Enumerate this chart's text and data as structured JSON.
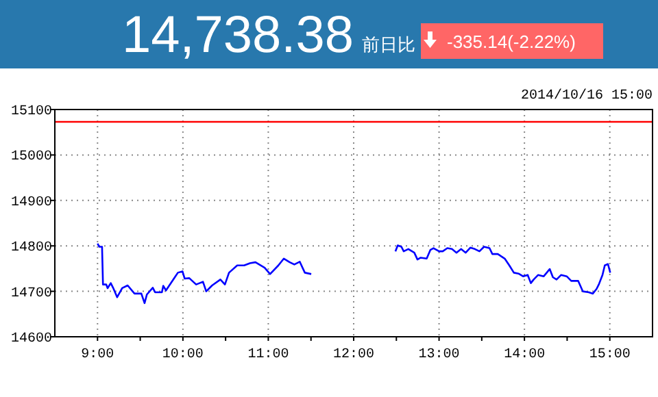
{
  "chart_data": {
    "type": "line",
    "title": "14,738.38",
    "annotations": [
      "前日比",
      "-335.14(-2.22%)",
      "2014/10/16 15:00"
    ],
    "xlim": [
      8.5,
      15.5
    ],
    "xticks": [
      {
        "value": 9,
        "label": "9:00"
      },
      {
        "value": 9.5,
        "label": null
      },
      {
        "value": 10,
        "label": "10:00"
      },
      {
        "value": 10.5,
        "label": null
      },
      {
        "value": 11,
        "label": "11:00"
      },
      {
        "value": 11.5,
        "label": null
      },
      {
        "value": 12,
        "label": "12:00"
      },
      {
        "value": 12.5,
        "label": null
      },
      {
        "value": 13,
        "label": "13:00"
      },
      {
        "value": 13.5,
        "label": null
      },
      {
        "value": 14,
        "label": "14:00"
      },
      {
        "value": 14.5,
        "label": null
      },
      {
        "value": 15,
        "label": "15:00"
      }
    ],
    "ylim": [
      14600,
      15100
    ],
    "yticks": [
      14600,
      14700,
      14800,
      14900,
      15000,
      15100
    ],
    "grid": true,
    "line_style": "solid",
    "ref_lines": [
      {
        "axis": "y",
        "value": 15073,
        "color": "#ff0000"
      }
    ],
    "series": [
      {
        "color": "#0000ff",
        "x": [
          9.0,
          9.021,
          9.053,
          9.064,
          9.102,
          9.118,
          9.155,
          9.182,
          9.23,
          9.289,
          9.353,
          9.433,
          9.513,
          9.551,
          9.578,
          9.647,
          9.674,
          9.754,
          9.77,
          9.802,
          9.888,
          9.941,
          9.995,
          10.021,
          10.075,
          10.155,
          10.235,
          10.273,
          10.342,
          10.439,
          10.492,
          10.54,
          10.636,
          10.717,
          10.786,
          10.85,
          10.957,
          11.021,
          11.118,
          11.182,
          11.251,
          11.305,
          11.369,
          11.428,
          11.503,
          12.0,
          12.489,
          12.516,
          12.559,
          12.586,
          12.64,
          12.71,
          12.747,
          12.785,
          12.855,
          12.898,
          12.935,
          13.0,
          13.043,
          13.097,
          13.151,
          13.204,
          13.258,
          13.312,
          13.366,
          13.419,
          13.473,
          13.527,
          13.591,
          13.624,
          13.688,
          13.769,
          13.823,
          13.876,
          13.93,
          13.984,
          14.038,
          14.075,
          14.108,
          14.161,
          14.226,
          14.296,
          14.333,
          14.376,
          14.43,
          14.495,
          14.548,
          14.629,
          14.683,
          14.753,
          14.801,
          14.844,
          14.871,
          14.914,
          14.941,
          14.978,
          15.005
        ],
        "values": [
          14805,
          14798,
          14798,
          14715,
          14715,
          14707,
          14718,
          14708,
          14687,
          14707,
          14713,
          14695,
          14695,
          14674,
          14693,
          14708,
          14698,
          14698,
          14712,
          14702,
          14726,
          14741,
          14744,
          14728,
          14729,
          14715,
          14721,
          14700,
          14713,
          14726,
          14715,
          14741,
          14757,
          14757,
          14762,
          14764,
          14752,
          14738,
          14757,
          14772,
          14764,
          14759,
          14765,
          14741,
          14738,
          null,
          14788,
          14801,
          14798,
          14788,
          14793,
          14785,
          14770,
          14774,
          14772,
          14791,
          14795,
          14788,
          14788,
          14795,
          14793,
          14785,
          14793,
          14785,
          14796,
          14793,
          14788,
          14798,
          14795,
          14782,
          14782,
          14772,
          14757,
          14741,
          14739,
          14733,
          14736,
          14718,
          14726,
          14736,
          14733,
          14749,
          14731,
          14726,
          14736,
          14733,
          14723,
          14723,
          14700,
          14698,
          14695,
          14705,
          14715,
          14736,
          14757,
          14760,
          14741
        ]
      }
    ]
  }
}
